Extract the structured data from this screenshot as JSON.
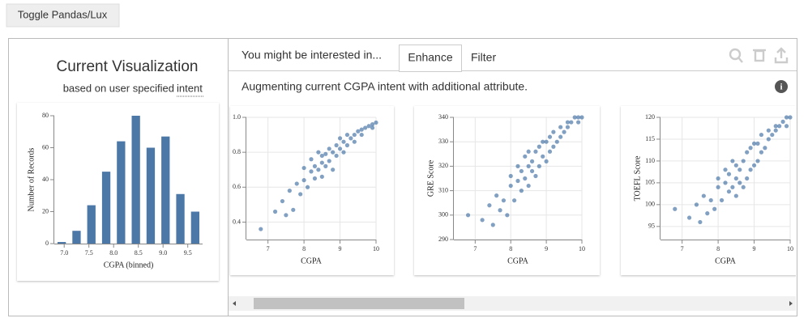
{
  "button": {
    "label": "Toggle Pandas/Lux"
  },
  "left": {
    "title": "Current Visualization",
    "subtitle": "based on user specified",
    "subtitle_link": "intent",
    "chart": {
      "type": "histogram",
      "x_label": "CGPA (binned)",
      "y_label": "Number of Records",
      "color": "#4c78a8",
      "bins": [
        6.8,
        7.1,
        7.4,
        7.7,
        8.0,
        8.3,
        8.6,
        8.9,
        9.2,
        9.5,
        9.8
      ],
      "values": [
        1,
        8,
        24,
        45,
        64,
        80,
        60,
        67,
        31,
        20
      ],
      "xlim": [
        6.8,
        9.8
      ],
      "ylim": [
        0,
        80
      ],
      "xticks": [
        {
          "value": 7,
          "label": "7.0"
        },
        7.5,
        {
          "value": 8,
          "label": "8.0"
        },
        8.5,
        {
          "value": 9,
          "label": "9.0"
        },
        9.5
      ],
      "yticks": [
        0,
        20,
        40,
        60,
        80
      ]
    }
  },
  "right": {
    "intro": "You might be interested in...",
    "tabs": [
      "Enhance",
      "Filter"
    ],
    "description": "Augmenting current CGPA intent with additional attribute.",
    "charts": [
      {
        "type": "scatter",
        "x_label": "CGPA",
        "color": "#4c78a8",
        "xlim": [
          6.4,
          10
        ],
        "ylim": [
          0.3,
          1
        ],
        "xticks": [
          7,
          8,
          9,
          10
        ],
        "yticks": [
          0.4,
          0.6,
          0.8,
          {
            "value": 1,
            "label": "1.0"
          }
        ],
        "x": [
          6.8,
          7.2,
          7.4,
          7.5,
          7.6,
          7.7,
          7.8,
          7.9,
          8.0,
          8.0,
          8.1,
          8.2,
          8.2,
          8.3,
          8.3,
          8.4,
          8.4,
          8.5,
          8.5,
          8.5,
          8.6,
          8.6,
          8.7,
          8.7,
          8.8,
          8.8,
          8.9,
          8.9,
          9.0,
          9.0,
          9.1,
          9.1,
          9.2,
          9.2,
          9.3,
          9.4,
          9.4,
          9.5,
          9.6,
          9.6,
          9.7,
          9.8,
          9.9,
          9.9,
          10.0
        ],
        "y": [
          0.36,
          0.46,
          0.52,
          0.44,
          0.58,
          0.47,
          0.62,
          0.56,
          0.64,
          0.71,
          0.6,
          0.69,
          0.76,
          0.65,
          0.72,
          0.7,
          0.8,
          0.66,
          0.74,
          0.78,
          0.72,
          0.79,
          0.75,
          0.82,
          0.7,
          0.8,
          0.78,
          0.84,
          0.82,
          0.88,
          0.8,
          0.86,
          0.84,
          0.9,
          0.88,
          0.9,
          0.86,
          0.92,
          0.93,
          0.9,
          0.94,
          0.95,
          0.96,
          0.94,
          0.97
        ]
      },
      {
        "type": "scatter",
        "x_label": "CGPA",
        "y_label": "GRE Score",
        "color": "#4c78a8",
        "xlim": [
          6.4,
          10
        ],
        "ylim": [
          290,
          340
        ],
        "xticks": [
          7,
          8,
          9,
          10
        ],
        "yticks": [
          290,
          300,
          310,
          320,
          330,
          340
        ],
        "x": [
          6.8,
          7.2,
          7.4,
          7.5,
          7.6,
          7.7,
          7.8,
          7.9,
          8.0,
          8.0,
          8.1,
          8.2,
          8.2,
          8.3,
          8.3,
          8.4,
          8.4,
          8.5,
          8.5,
          8.5,
          8.6,
          8.6,
          8.7,
          8.7,
          8.8,
          8.8,
          8.9,
          8.9,
          9.0,
          9.0,
          9.1,
          9.1,
          9.2,
          9.2,
          9.3,
          9.4,
          9.4,
          9.5,
          9.6,
          9.6,
          9.7,
          9.8,
          9.9,
          9.9,
          10.0
        ],
        "y": [
          300,
          298,
          304,
          296,
          308,
          302,
          306,
          300,
          312,
          316,
          306,
          314,
          320,
          310,
          318,
          315,
          324,
          312,
          320,
          326,
          318,
          322,
          316,
          326,
          320,
          328,
          324,
          330,
          322,
          330,
          326,
          332,
          328,
          334,
          330,
          336,
          332,
          334,
          338,
          336,
          338,
          340,
          340,
          338,
          340
        ]
      },
      {
        "type": "scatter",
        "x_label": "CGPA",
        "y_label": "TOEFL Score",
        "color": "#4c78a8",
        "xlim": [
          6.4,
          10
        ],
        "ylim": [
          92,
          120
        ],
        "xticks": [
          7,
          8,
          9,
          10
        ],
        "yticks": [
          95,
          100,
          105,
          110,
          115,
          120
        ],
        "x": [
          6.8,
          7.2,
          7.4,
          7.5,
          7.6,
          7.7,
          7.8,
          7.9,
          8.0,
          8.0,
          8.1,
          8.2,
          8.2,
          8.3,
          8.3,
          8.4,
          8.4,
          8.5,
          8.5,
          8.5,
          8.6,
          8.6,
          8.7,
          8.7,
          8.8,
          8.8,
          8.9,
          8.9,
          9.0,
          9.0,
          9.1,
          9.1,
          9.2,
          9.2,
          9.3,
          9.4,
          9.4,
          9.5,
          9.6,
          9.6,
          9.7,
          9.8,
          9.9,
          9.9,
          10.0
        ],
        "y": [
          99,
          97,
          100,
          96,
          102,
          98,
          101,
          99,
          104,
          106,
          101,
          105,
          108,
          103,
          107,
          104,
          110,
          102,
          106,
          109,
          105,
          108,
          104,
          110,
          106,
          112,
          108,
          113,
          109,
          114,
          110,
          114,
          112,
          116,
          113,
          117,
          115,
          116,
          118,
          117,
          118,
          119,
          120,
          118,
          120
        ]
      }
    ]
  }
}
